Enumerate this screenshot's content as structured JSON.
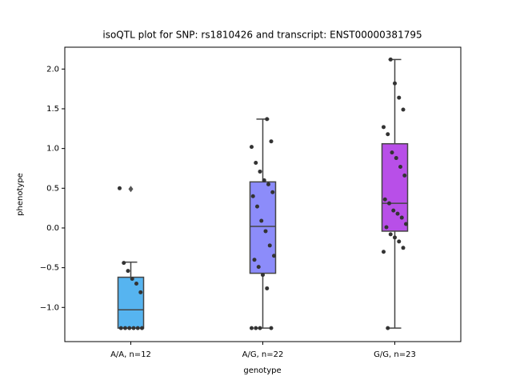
{
  "chart_data": {
    "type": "box",
    "title": "isoQTL plot for SNP: rs1810426 and transcript: ENST00000381795",
    "xlabel": "genotype",
    "ylabel": "phenotype",
    "categories": [
      "A/A, n=12",
      "A/G, n=22",
      "G/G, n=23"
    ],
    "colors": [
      "#56b4f0",
      "#8c8cfa",
      "#b84fe8"
    ],
    "boxes": [
      {
        "whislo": -1.26,
        "q1": -1.26,
        "median": -1.03,
        "q3": -0.62,
        "whishi": -0.43,
        "fliers": [
          0.49
        ]
      },
      {
        "whislo": -1.26,
        "q1": -0.57,
        "median": 0.02,
        "q3": 0.58,
        "whishi": 1.37,
        "fliers": []
      },
      {
        "whislo": -1.26,
        "q1": -0.04,
        "median": 0.31,
        "q3": 1.06,
        "whishi": 2.12,
        "fliers": []
      }
    ],
    "points": [
      [
        0.5,
        -0.44,
        -0.54,
        -0.64,
        -0.7,
        -0.81,
        -1.26,
        -1.26,
        -1.26,
        -1.26,
        -1.26,
        -1.26
      ],
      [
        1.37,
        1.09,
        1.02,
        0.82,
        0.71,
        0.6,
        0.55,
        0.45,
        0.4,
        0.27,
        0.09,
        -0.04,
        -0.22,
        -0.35,
        -0.4,
        -0.49,
        -0.59,
        -0.76,
        -1.26,
        -1.26,
        -1.26,
        -1.26
      ],
      [
        2.12,
        1.82,
        1.64,
        1.49,
        1.27,
        1.18,
        0.95,
        0.88,
        0.77,
        0.66,
        0.36,
        0.31,
        0.22,
        0.18,
        0.13,
        0.05,
        0.01,
        -0.08,
        -0.12,
        -0.17,
        -0.25,
        -0.3,
        -1.26
      ]
    ],
    "ylim": [
      -1.43,
      2.275
    ],
    "yticks": [
      {
        "value": -1.0,
        "label": "−1.0"
      },
      {
        "value": -0.5,
        "label": "−0.5"
      },
      {
        "value": 0.0,
        "label": "0.0"
      },
      0.5,
      {
        "value": 1.0,
        "label": "1.0"
      },
      1.5,
      {
        "value": 2.0,
        "label": "2.0"
      }
    ]
  }
}
